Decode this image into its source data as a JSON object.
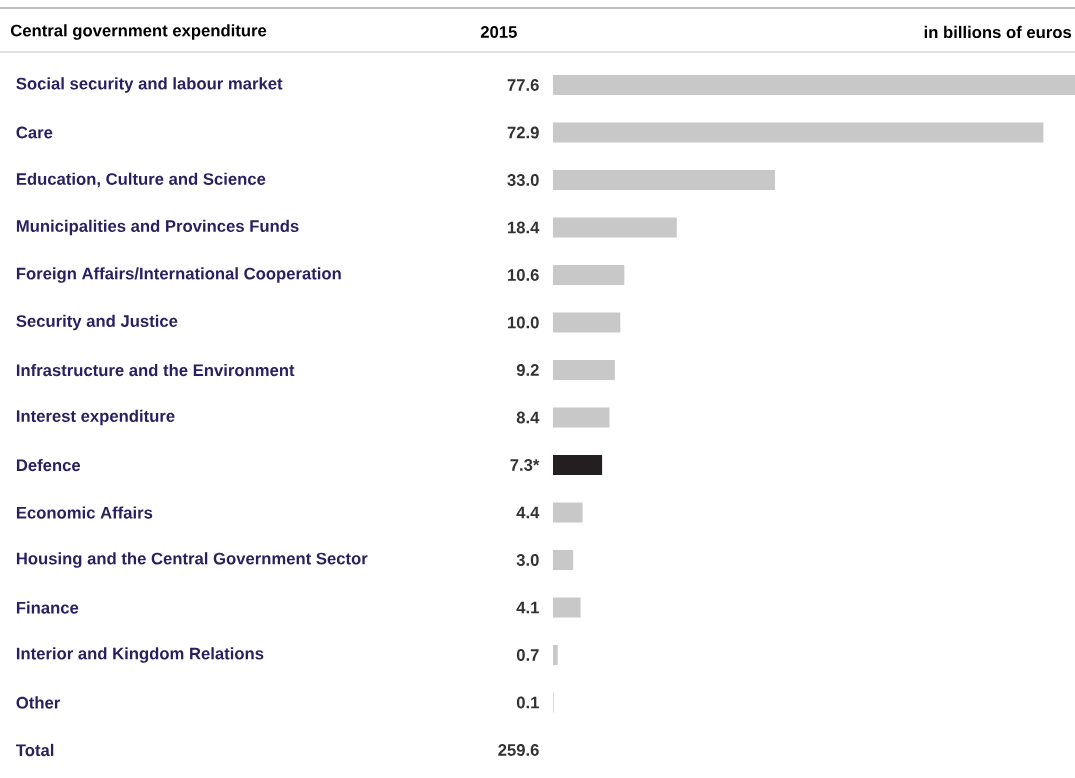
{
  "chart_data": {
    "type": "bar",
    "orientation": "horizontal",
    "title": "Central government expenditure",
    "annotations": [
      "2015",
      "in billions of euros"
    ],
    "categories": [
      "Social security and labour market",
      "Care",
      "Education, Culture and Science",
      "Municipalities and Provinces Funds",
      "Foreign Affairs/International Cooperation",
      "Security and Justice",
      "Infrastructure and the Environment",
      "Interest expenditure",
      "Defence",
      "Economic Affairs",
      "Housing and the Central Government Sector",
      "Finance",
      "Interior and Kingdom Relations",
      "Other",
      "Total"
    ],
    "values": [
      77.6,
      72.9,
      33.0,
      18.4,
      10.6,
      10.0,
      9.2,
      8.4,
      7.3,
      4.4,
      3.0,
      4.1,
      0.7,
      0.1,
      null
    ],
    "colors": [
      "#c8c8c8",
      "#c8c8c8",
      "#c8c8c8",
      "#c8c8c8",
      "#c8c8c8",
      "#c8c8c8",
      "#c8c8c8",
      "#c8c8c8",
      "#231f20",
      "#c8c8c8",
      "#c8c8c8",
      "#c8c8c8",
      "#c8c8c8",
      "#c8c8c8",
      "#c8c8c8"
    ],
    "value_labels": [
      "77.6",
      "72.9",
      "33.0",
      "18.4",
      "10.6",
      "10.0",
      "9.2",
      "8.4",
      "7.3*",
      "4.4",
      "3.0",
      "4.1",
      "0.7",
      "0.1",
      "259.6"
    ]
  }
}
